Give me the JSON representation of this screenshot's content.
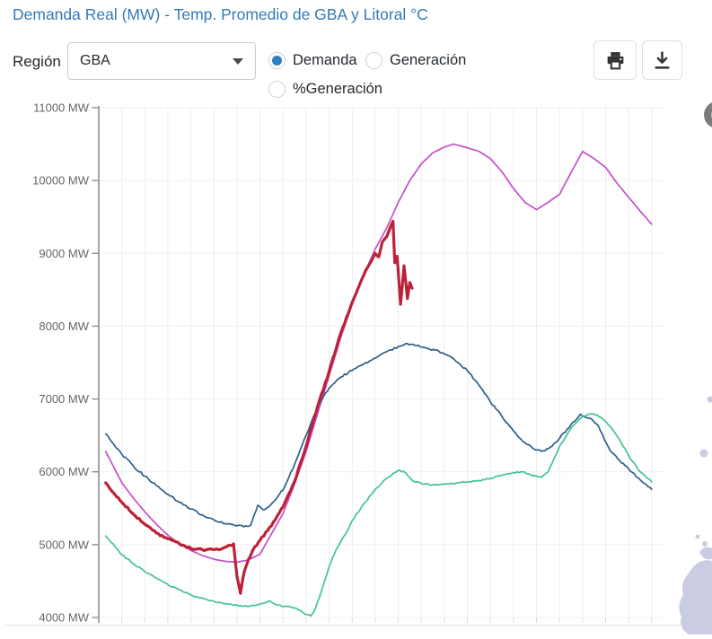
{
  "header": {
    "title": "Demanda Real (MW) - Temp. Promedio de GBA y Litoral °C"
  },
  "controls": {
    "region_label": "Región",
    "region_value": "GBA",
    "radios": [
      {
        "label": "Demanda",
        "selected": true
      },
      {
        "label": "Generación",
        "selected": false
      },
      {
        "label": "%Generación",
        "selected": false
      }
    ],
    "icons": {
      "print": "printer-icon",
      "download": "download-icon",
      "select_caret": "chevron-down-icon"
    }
  },
  "colors": {
    "title_blue": "#337ab7",
    "radio_selected": "#2b7fc3",
    "series_red": "#bd2137",
    "series_magenta": "#c44fc9",
    "series_blue": "#2c5f8a",
    "series_green": "#43c392",
    "axis": "#8d8d8d",
    "grid": "#ededed",
    "map_fragment": "#c9cce3"
  },
  "chart_data": {
    "type": "line",
    "title": "Demanda Real (MW) - Temp. Promedio de GBA y Litoral °C",
    "xlabel": "",
    "ylabel": "MW",
    "ylim": [
      4000,
      11000
    ],
    "y_tick_step": 1000,
    "y_ticks": [
      "11000 MW",
      "10000 MW",
      "9000 MW",
      "8000 MW",
      "7000 MW",
      "6000 MW",
      "5000 MW",
      "4000 MW"
    ],
    "x_axis": {
      "min": 0,
      "max": 24,
      "gridline_step": 1,
      "tick_labels_visible": false
    },
    "grid": true,
    "legend_visible": false,
    "series": [
      {
        "id": "magenta",
        "color": "#c44fc9",
        "width": 1.7,
        "jitter": 0,
        "points": [
          [
            0.3,
            6280
          ],
          [
            1,
            5850
          ],
          [
            1.5,
            5640
          ],
          [
            2,
            5450
          ],
          [
            2.5,
            5280
          ],
          [
            3,
            5130
          ],
          [
            3.5,
            5010
          ],
          [
            4,
            4920
          ],
          [
            4.5,
            4850
          ],
          [
            5,
            4800
          ],
          [
            5.5,
            4770
          ],
          [
            6,
            4760
          ],
          [
            6.5,
            4790
          ],
          [
            7,
            4870
          ],
          [
            7.5,
            5150
          ],
          [
            8,
            5430
          ],
          [
            8.5,
            5830
          ],
          [
            9,
            6280
          ],
          [
            9.5,
            6800
          ],
          [
            10,
            7320
          ],
          [
            10.5,
            7840
          ],
          [
            11,
            8300
          ],
          [
            11.5,
            8700
          ],
          [
            12,
            9060
          ],
          [
            12.5,
            9350
          ],
          [
            13,
            9700
          ],
          [
            13.5,
            10000
          ],
          [
            14,
            10230
          ],
          [
            14.5,
            10380
          ],
          [
            15,
            10460
          ],
          [
            15.4,
            10500
          ],
          [
            16,
            10450
          ],
          [
            16.5,
            10400
          ],
          [
            17,
            10300
          ],
          [
            17.5,
            10120
          ],
          [
            18,
            9890
          ],
          [
            18.5,
            9700
          ],
          [
            19,
            9600
          ],
          [
            19.5,
            9700
          ],
          [
            20,
            9810
          ],
          [
            20.5,
            10110
          ],
          [
            21,
            10400
          ],
          [
            21.5,
            10300
          ],
          [
            22,
            10180
          ],
          [
            22.5,
            9960
          ],
          [
            23,
            9770
          ],
          [
            23.5,
            9580
          ],
          [
            24,
            9400
          ]
        ]
      },
      {
        "id": "dark_blue",
        "color": "#2c5f8a",
        "width": 1.7,
        "jitter": 30,
        "points": [
          [
            0.3,
            6520
          ],
          [
            1,
            6240
          ],
          [
            1.5,
            6080
          ],
          [
            2,
            5940
          ],
          [
            2.5,
            5810
          ],
          [
            3,
            5690
          ],
          [
            3.5,
            5580
          ],
          [
            4,
            5490
          ],
          [
            4.5,
            5410
          ],
          [
            5,
            5340
          ],
          [
            5.5,
            5290
          ],
          [
            6,
            5260
          ],
          [
            6.3,
            5245
          ],
          [
            6.6,
            5270
          ],
          [
            6.9,
            5540
          ],
          [
            7.2,
            5480
          ],
          [
            7.5,
            5560
          ],
          [
            8,
            5750
          ],
          [
            8.5,
            6100
          ],
          [
            9,
            6500
          ],
          [
            9.5,
            6900
          ],
          [
            10,
            7150
          ],
          [
            10.5,
            7300
          ],
          [
            11,
            7390
          ],
          [
            11.5,
            7480
          ],
          [
            12,
            7560
          ],
          [
            12.5,
            7650
          ],
          [
            13,
            7720
          ],
          [
            13.4,
            7760
          ],
          [
            13.8,
            7730
          ],
          [
            14.2,
            7700
          ],
          [
            14.6,
            7670
          ],
          [
            15,
            7620
          ],
          [
            15.5,
            7520
          ],
          [
            16,
            7390
          ],
          [
            16.5,
            7190
          ],
          [
            17,
            6960
          ],
          [
            17.5,
            6760
          ],
          [
            18,
            6560
          ],
          [
            18.5,
            6400
          ],
          [
            19,
            6300
          ],
          [
            19.3,
            6290
          ],
          [
            19.6,
            6340
          ],
          [
            20,
            6460
          ],
          [
            20.5,
            6650
          ],
          [
            20.9,
            6790
          ],
          [
            21.3,
            6740
          ],
          [
            21.7,
            6620
          ],
          [
            22.2,
            6290
          ],
          [
            22.6,
            6160
          ],
          [
            23,
            6040
          ],
          [
            23.5,
            5890
          ],
          [
            24,
            5760
          ]
        ]
      },
      {
        "id": "green",
        "color": "#43c392",
        "width": 1.7,
        "jitter": 20,
        "points": [
          [
            0.3,
            5120
          ],
          [
            1,
            4860
          ],
          [
            1.5,
            4740
          ],
          [
            2,
            4630
          ],
          [
            2.5,
            4540
          ],
          [
            3,
            4450
          ],
          [
            3.5,
            4380
          ],
          [
            4,
            4310
          ],
          [
            4.5,
            4260
          ],
          [
            5,
            4220
          ],
          [
            5.5,
            4190
          ],
          [
            6,
            4170
          ],
          [
            6.5,
            4150
          ],
          [
            7,
            4180
          ],
          [
            7.4,
            4230
          ],
          [
            7.8,
            4170
          ],
          [
            8.2,
            4150
          ],
          [
            8.6,
            4120
          ],
          [
            9,
            4040
          ],
          [
            9.2,
            4020
          ],
          [
            9.4,
            4120
          ],
          [
            9.7,
            4400
          ],
          [
            10,
            4700
          ],
          [
            10.3,
            4930
          ],
          [
            10.7,
            5140
          ],
          [
            11,
            5330
          ],
          [
            11.5,
            5560
          ],
          [
            12,
            5760
          ],
          [
            12.5,
            5910
          ],
          [
            13,
            6020
          ],
          [
            13.3,
            5990
          ],
          [
            13.6,
            5880
          ],
          [
            14,
            5840
          ],
          [
            14.5,
            5820
          ],
          [
            15,
            5830
          ],
          [
            15.5,
            5845
          ],
          [
            16,
            5860
          ],
          [
            16.5,
            5880
          ],
          [
            17,
            5910
          ],
          [
            17.5,
            5950
          ],
          [
            18,
            5990
          ],
          [
            18.4,
            6000
          ],
          [
            18.8,
            5950
          ],
          [
            19.2,
            5925
          ],
          [
            19.5,
            6000
          ],
          [
            20,
            6350
          ],
          [
            20.5,
            6600
          ],
          [
            21,
            6760
          ],
          [
            21.4,
            6800
          ],
          [
            21.8,
            6750
          ],
          [
            22.2,
            6620
          ],
          [
            22.6,
            6450
          ],
          [
            23,
            6220
          ],
          [
            23.5,
            6000
          ],
          [
            24,
            5860
          ]
        ]
      },
      {
        "id": "red_thick",
        "color": "#bd2137",
        "width": 3.2,
        "jitter": 26,
        "points": [
          [
            0.3,
            5850
          ],
          [
            0.7,
            5690
          ],
          [
            1,
            5580
          ],
          [
            1.5,
            5420
          ],
          [
            2,
            5280
          ],
          [
            2.5,
            5160
          ],
          [
            3,
            5080
          ],
          [
            3.5,
            5010
          ],
          [
            4,
            4950
          ],
          [
            4.5,
            4930
          ],
          [
            5,
            4930
          ],
          [
            5.4,
            4950
          ],
          [
            5.7,
            4990
          ],
          [
            5.85,
            5010
          ],
          [
            6.0,
            4560
          ],
          [
            6.15,
            4330
          ],
          [
            6.3,
            4610
          ],
          [
            6.5,
            4800
          ],
          [
            6.7,
            4930
          ],
          [
            7,
            5060
          ],
          [
            7.5,
            5260
          ],
          [
            8,
            5520
          ],
          [
            8.5,
            5870
          ],
          [
            9,
            6350
          ],
          [
            9.5,
            6900
          ],
          [
            10,
            7380
          ],
          [
            10.5,
            7900
          ],
          [
            11,
            8330
          ],
          [
            11.5,
            8700
          ],
          [
            12,
            9000
          ],
          [
            12.15,
            8950
          ],
          [
            12.3,
            9150
          ],
          [
            12.5,
            9230
          ],
          [
            12.77,
            9440
          ],
          [
            12.85,
            8870
          ],
          [
            12.95,
            8960
          ],
          [
            13.1,
            8300
          ],
          [
            13.25,
            8830
          ],
          [
            13.4,
            8380
          ],
          [
            13.5,
            8600
          ],
          [
            13.6,
            8520
          ]
        ]
      }
    ]
  }
}
